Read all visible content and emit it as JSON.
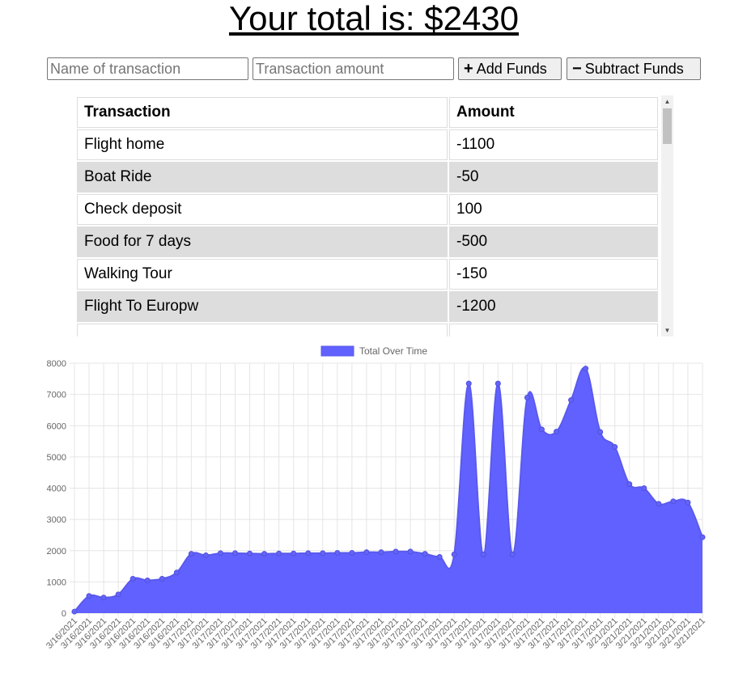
{
  "header": {
    "total_label": "Your total is: $2430"
  },
  "form": {
    "name_placeholder": "Name of transaction",
    "amount_placeholder": "Transaction amount",
    "add_label": "Add Funds",
    "subtract_label": "Subtract Funds",
    "add_icon": "plus-icon",
    "subtract_icon": "minus-icon"
  },
  "table": {
    "headers": [
      "Transaction",
      "Amount"
    ],
    "rows": [
      {
        "name": "Flight home",
        "amount": "-1100"
      },
      {
        "name": "Boat Ride",
        "amount": "-50"
      },
      {
        "name": "Check deposit",
        "amount": "100"
      },
      {
        "name": "Food for 7 days",
        "amount": "-500"
      },
      {
        "name": "Walking Tour",
        "amount": "-150"
      },
      {
        "name": "Flight To Europw",
        "amount": "-1200"
      }
    ]
  },
  "chart_data": {
    "type": "area",
    "series": [
      {
        "name": "Total Over Time",
        "color": "#6161ff",
        "values": [
          50,
          550,
          500,
          600,
          1100,
          1050,
          1100,
          1300,
          1900,
          1850,
          1920,
          1920,
          1910,
          1900,
          1910,
          1910,
          1920,
          1920,
          1930,
          1930,
          1950,
          1950,
          1970,
          1970,
          1900,
          1800,
          1880,
          7350,
          1880,
          7350,
          1880,
          6900,
          5880,
          5810,
          6820,
          7830,
          5800,
          5320,
          4130,
          4000,
          3500,
          3580,
          3540,
          2430
        ]
      }
    ],
    "x": [
      "3/16/2021",
      "3/16/2021",
      "3/16/2021",
      "3/16/2021",
      "3/16/2021",
      "3/16/2021",
      "3/16/2021",
      "3/16/2021",
      "3/17/2021",
      "3/17/2021",
      "3/17/2021",
      "3/17/2021",
      "3/17/2021",
      "3/17/2021",
      "3/17/2021",
      "3/17/2021",
      "3/17/2021",
      "3/17/2021",
      "3/17/2021",
      "3/17/2021",
      "3/17/2021",
      "3/17/2021",
      "3/17/2021",
      "3/17/2021",
      "3/17/2021",
      "3/17/2021",
      "3/17/2021",
      "3/17/2021",
      "3/17/2021",
      "3/17/2021",
      "3/17/2021",
      "3/17/2021",
      "3/17/2021",
      "3/17/2021",
      "3/17/2021",
      "3/17/2021",
      "3/17/2021",
      "3/21/2021",
      "3/21/2021",
      "3/21/2021",
      "3/21/2021",
      "3/21/2021",
      "3/21/2021",
      "3/21/2021"
    ],
    "ylim": [
      0,
      8000
    ],
    "yticks": [
      0,
      1000,
      2000,
      3000,
      4000,
      5000,
      6000,
      7000,
      8000
    ],
    "grid": true,
    "legend": "top-center"
  }
}
